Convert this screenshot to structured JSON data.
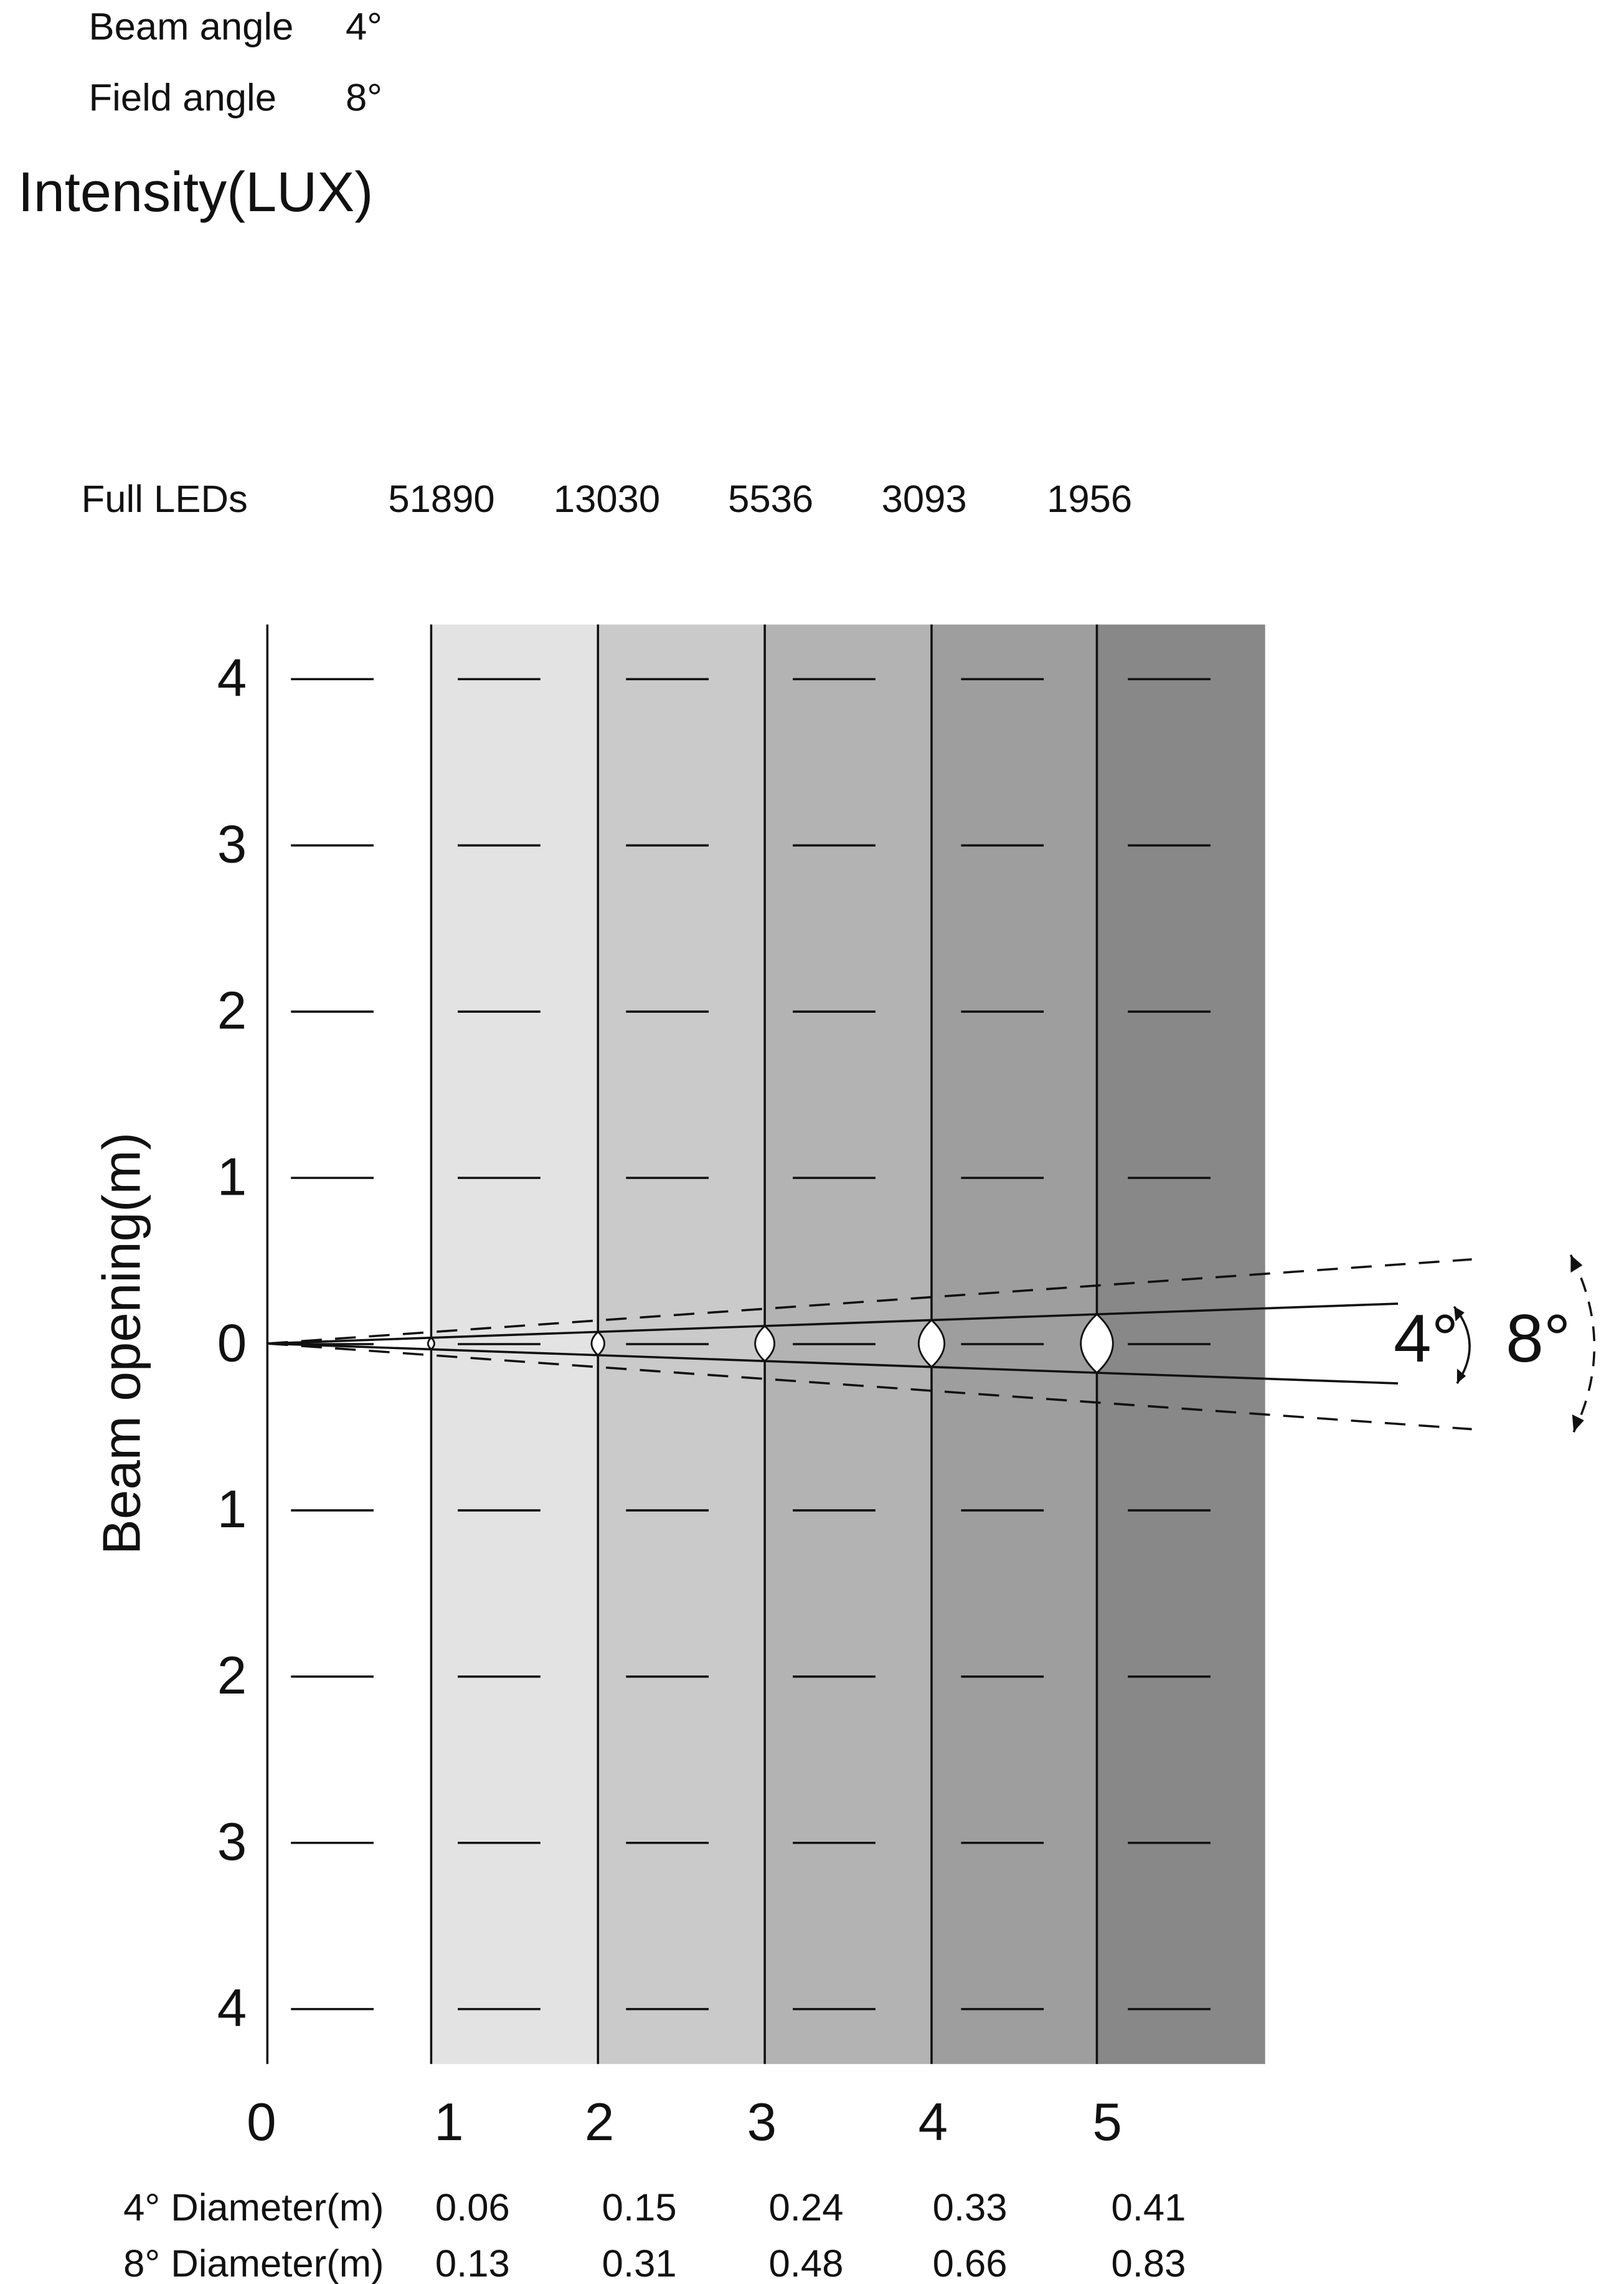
{
  "specs": [
    {
      "label": "Beam angle",
      "value": "4°"
    },
    {
      "label": "Field angle",
      "value": "8°"
    }
  ],
  "title": "Intensity(LUX)",
  "intensity": {
    "label": "Full LEDs",
    "values": [
      51890,
      13030,
      5536,
      3093,
      1956
    ]
  },
  "y_axis": {
    "label": "Beam opening(m)",
    "ticks": [
      4,
      3,
      2,
      1,
      0,
      1,
      2,
      3,
      4
    ]
  },
  "x_axis": {
    "ticks": [
      0,
      1,
      2,
      3,
      4,
      5
    ]
  },
  "angles": [
    "4°",
    "8°"
  ],
  "diameters": [
    {
      "label": "4° Diameter(m)",
      "values": [
        0.06,
        0.15,
        0.24,
        0.33,
        0.41
      ]
    },
    {
      "label": "8° Diameter(m)",
      "values": [
        0.13,
        0.31,
        0.48,
        0.66,
        0.83
      ]
    }
  ]
}
